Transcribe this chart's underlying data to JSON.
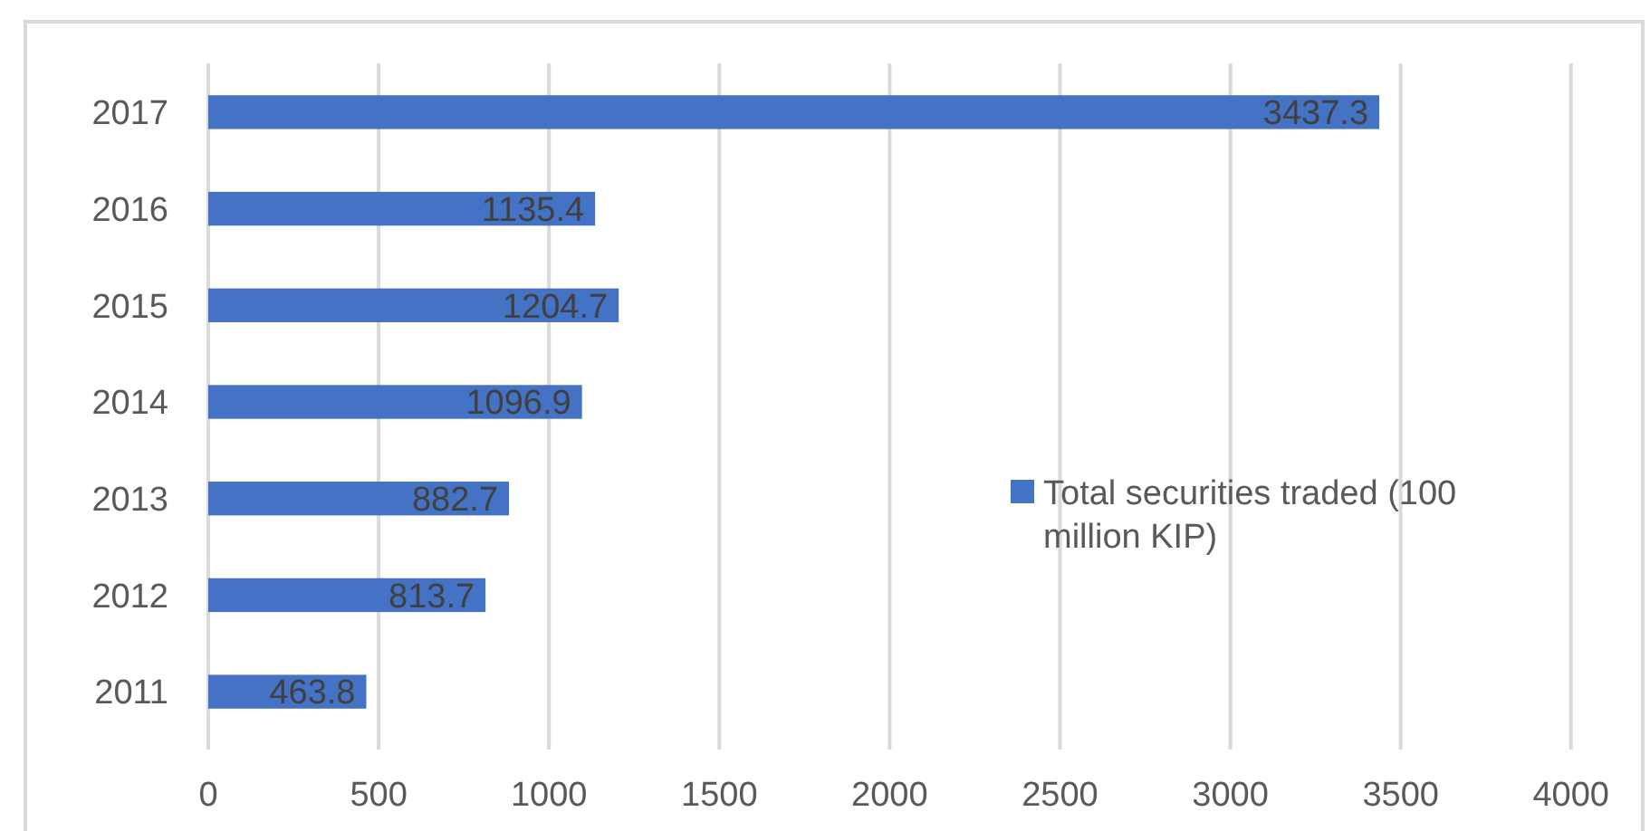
{
  "chart_data": {
    "type": "bar",
    "orientation": "horizontal",
    "categories": [
      "2017",
      "2016",
      "2015",
      "2014",
      "2013",
      "2012",
      "2011"
    ],
    "series": [
      {
        "name": "Total securities traded (100 million KIP)",
        "color": "#4472c4",
        "values": [
          3437.3,
          1135.4,
          1204.7,
          1096.9,
          882.7,
          813.7,
          463.8
        ]
      }
    ],
    "xlim": [
      0,
      4200
    ],
    "xticks": [
      0,
      500,
      1000,
      1500,
      2000,
      2500,
      3000,
      3500,
      4000
    ],
    "grid": "x",
    "legend": "right",
    "data_labels": true
  }
}
